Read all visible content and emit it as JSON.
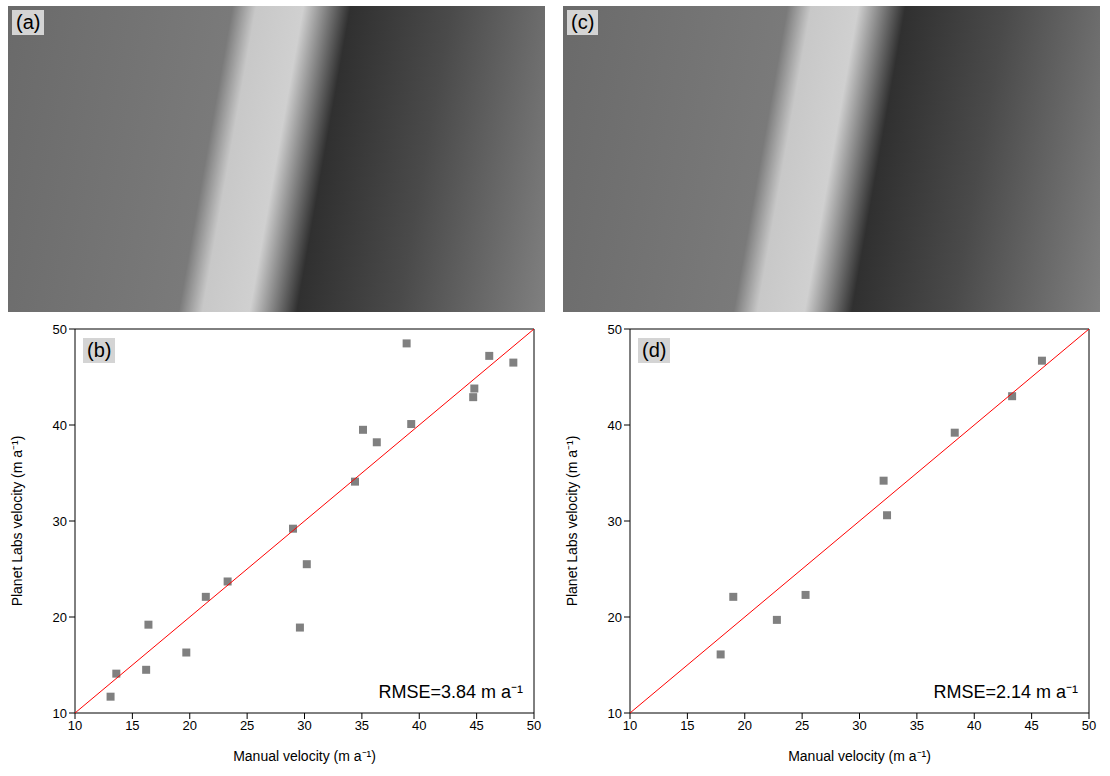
{
  "images": [
    {
      "label": "(a)"
    },
    {
      "label": "(c)"
    }
  ],
  "chart_data": [
    {
      "type": "scatter",
      "label": "(b)",
      "x_label": "Manual velocity (m a⁻¹)",
      "y_label": "Planet Labs velocity (m a⁻¹)",
      "annotation": "RMSE=3.84 m a⁻¹",
      "xlim": [
        10,
        50
      ],
      "xticks": [
        10,
        15,
        20,
        25,
        30,
        35,
        40,
        45,
        50
      ],
      "ylim": [
        10,
        50
      ],
      "yticks": [
        10,
        20,
        30,
        40,
        50
      ],
      "grid": false,
      "series": [
        {
          "type": "scatter",
          "color": "#808080",
          "marker": "square",
          "x": [
            13.1,
            13.6,
            16.2,
            16.4,
            19.7,
            21.4,
            23.3,
            29.0,
            29.6,
            30.2,
            34.4,
            35.1,
            36.3,
            38.9,
            39.3,
            44.7,
            44.8,
            46.1,
            48.2
          ],
          "values": [
            11.7,
            14.1,
            14.5,
            19.2,
            16.3,
            22.1,
            23.7,
            29.2,
            18.9,
            25.5,
            34.1,
            39.5,
            38.2,
            48.5,
            40.1,
            42.9,
            43.8,
            47.2,
            46.5
          ]
        },
        {
          "type": "line",
          "color": "#ff0000",
          "x": [
            10,
            50
          ],
          "values": [
            10,
            50
          ]
        }
      ]
    },
    {
      "type": "scatter",
      "label": "(d)",
      "x_label": "Manual velocity (m a⁻¹)",
      "y_label": "Planet Labs velocity (m a⁻¹)",
      "annotation": "RMSE=2.14 m a⁻¹",
      "xlim": [
        10,
        50
      ],
      "xticks": [
        10,
        15,
        20,
        25,
        30,
        35,
        40,
        45,
        50
      ],
      "ylim": [
        10,
        50
      ],
      "yticks": [
        10,
        20,
        30,
        40,
        50
      ],
      "grid": false,
      "series": [
        {
          "type": "scatter",
          "color": "#808080",
          "marker": "square",
          "x": [
            17.9,
            19.0,
            22.8,
            25.3,
            32.1,
            32.4,
            38.3,
            43.3,
            45.9
          ],
          "values": [
            16.1,
            22.1,
            19.7,
            22.3,
            34.2,
            30.6,
            39.2,
            43.0,
            46.7
          ]
        },
        {
          "type": "line",
          "color": "#ff0000",
          "x": [
            10,
            50
          ],
          "values": [
            10,
            50
          ]
        }
      ]
    }
  ]
}
